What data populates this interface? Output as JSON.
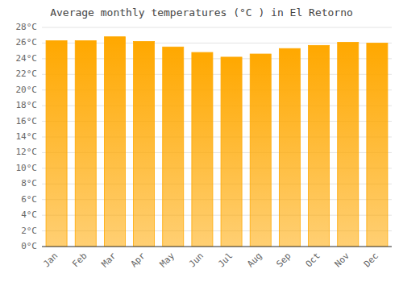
{
  "chart_data": {
    "type": "bar",
    "title": "Average monthly temperatures (°C ) in El Retorno",
    "categories": [
      "Jan",
      "Feb",
      "Mar",
      "Apr",
      "May",
      "Jun",
      "Jul",
      "Aug",
      "Sep",
      "Oct",
      "Nov",
      "Dec"
    ],
    "values": [
      26.3,
      26.3,
      26.8,
      26.2,
      25.5,
      24.8,
      24.2,
      24.6,
      25.3,
      25.7,
      26.1,
      26.0
    ],
    "color": "#FFA800",
    "ylim": [
      0,
      28
    ],
    "yticks": [
      {
        "value": 0,
        "label": "0°C"
      },
      {
        "value": 2,
        "label": "2°C"
      },
      {
        "value": 4,
        "label": "4°C"
      },
      {
        "value": 6,
        "label": "6°C"
      },
      {
        "value": 8,
        "label": "8°C"
      },
      {
        "value": 10,
        "label": "10°C"
      },
      {
        "value": 12,
        "label": "12°C"
      },
      {
        "value": 14,
        "label": "14°C"
      },
      {
        "value": 16,
        "label": "16°C"
      },
      {
        "value": 18,
        "label": "18°C"
      },
      {
        "value": 20,
        "label": "20°C"
      },
      {
        "value": 22,
        "label": "22°C"
      },
      {
        "value": 24,
        "label": "24°C"
      },
      {
        "value": 26,
        "label": "26°C"
      },
      {
        "value": 28,
        "label": "28°C"
      }
    ],
    "grid": true
  }
}
